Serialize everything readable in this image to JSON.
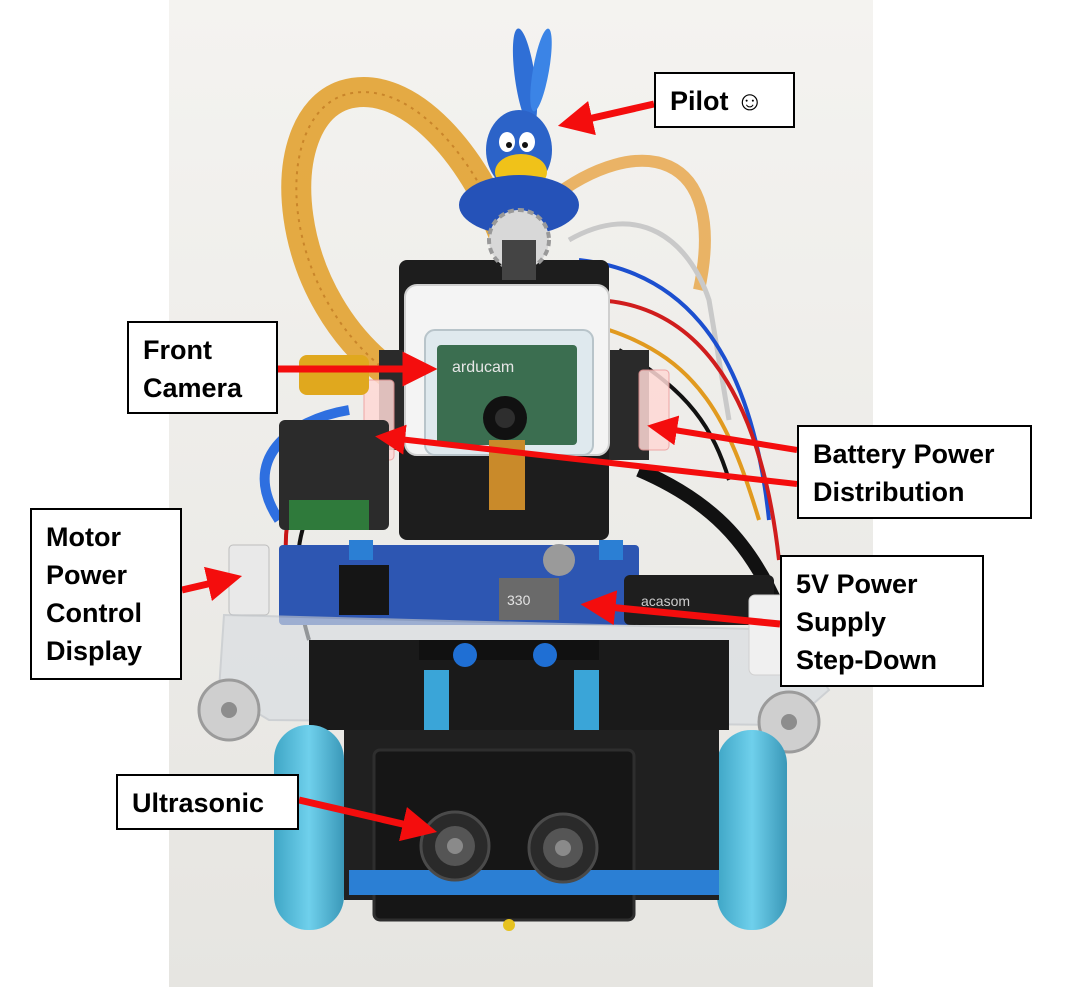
{
  "colors": {
    "arrow": "#f40d0d",
    "callout_border": "#000000",
    "callout_fill": "#ffffff",
    "backdrop": "#f2f1ee",
    "wheel": "#5fc2df",
    "board_blue": "#2d56b2",
    "ribbon_cable": "#e3a53a"
  },
  "subject": {
    "figurine_icon": "bird-figurine-icon",
    "camera_module_text": "arducam",
    "inductor_marking": "330",
    "cable_brand": "acasom"
  },
  "callouts": {
    "pilot": "Pilot ☺",
    "front_camera": "Front\nCamera",
    "battery_power": "Battery Power\nDistribution",
    "motor_power": "Motor\nPower\nControl\nDisplay",
    "power_supply": "5V Power\nSupply\nStep-Down",
    "ultrasonic": "Ultrasonic"
  }
}
